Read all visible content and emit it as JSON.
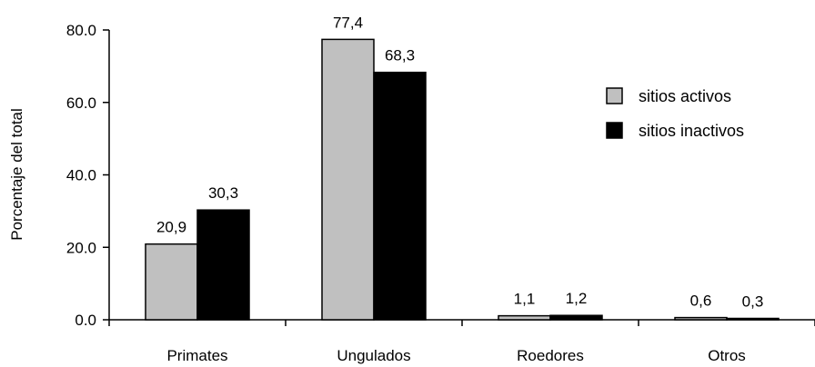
{
  "chart_data": {
    "type": "bar",
    "title": "",
    "xlabel": "",
    "ylabel": "Porcentaje del total",
    "ylim": [
      0,
      80
    ],
    "yticks": [
      0,
      20,
      40,
      60,
      80
    ],
    "ytick_labels": [
      "0.0",
      "20.0",
      "40.0",
      "60.0",
      "80.0"
    ],
    "categories": [
      "Primates",
      "Ungulados",
      "Roedores",
      "Otros"
    ],
    "series": [
      {
        "name": "sitios activos",
        "values": [
          20.9,
          77.4,
          1.1,
          0.6
        ],
        "labels": [
          "20,9",
          "77,4",
          "1,1",
          "0,6"
        ],
        "color": "#c0c0c0"
      },
      {
        "name": "sitios inactivos",
        "values": [
          30.3,
          68.3,
          1.2,
          0.3
        ],
        "labels": [
          "30,3",
          "68,3",
          "1,2",
          "0,3"
        ],
        "color": "#000000"
      }
    ],
    "grid": false,
    "legend_position": "right"
  }
}
